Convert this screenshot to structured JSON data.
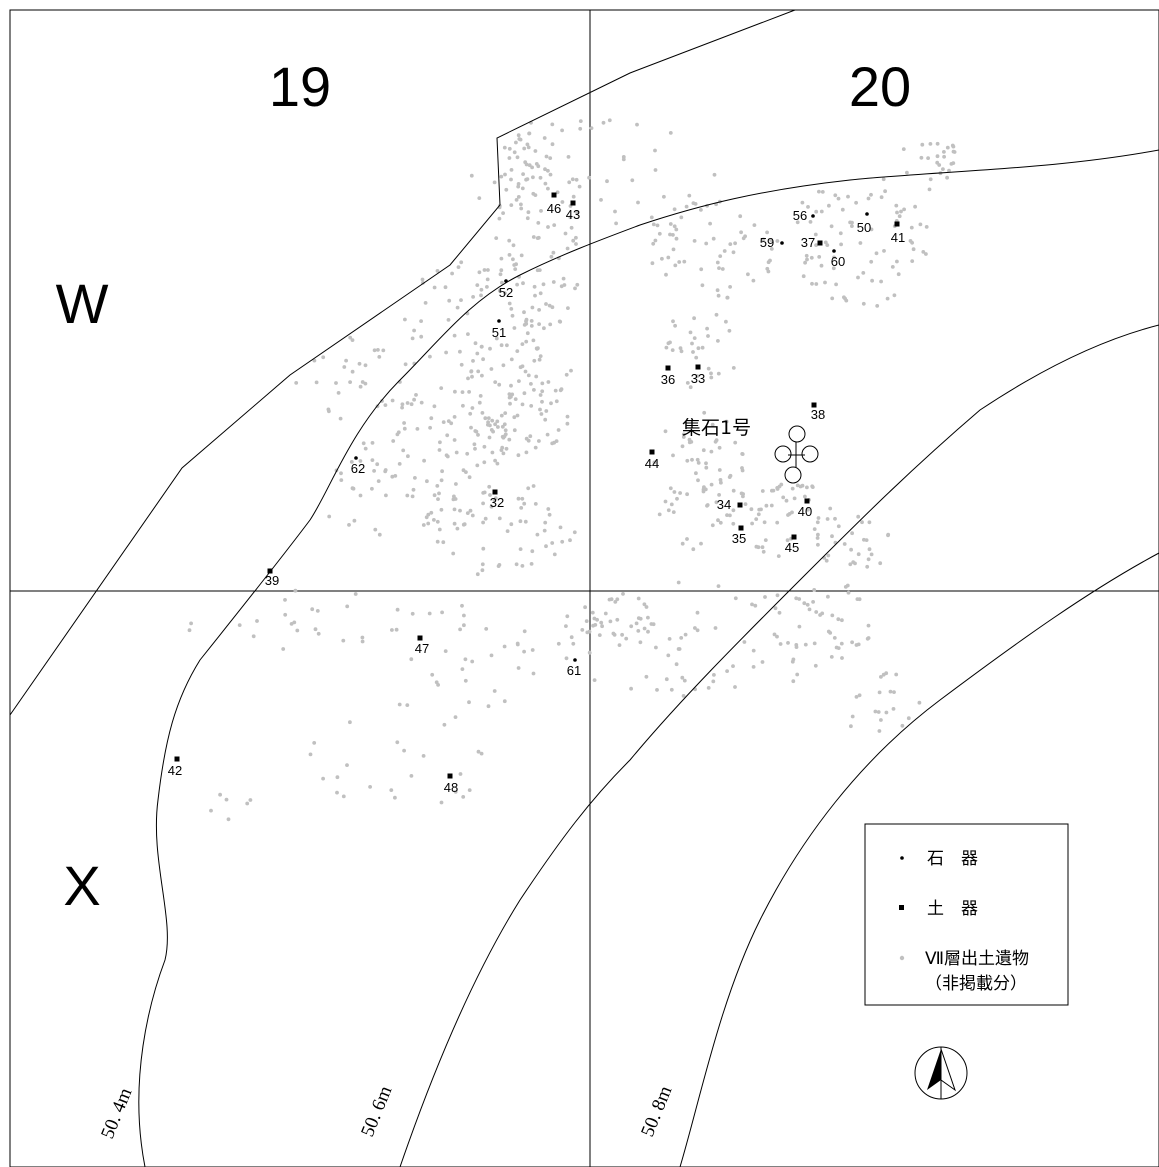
{
  "grid": {
    "columns": [
      "19",
      "20"
    ],
    "rows": [
      "W",
      "X"
    ]
  },
  "contours": [
    "50. 4m",
    "50. 6m",
    "50. 8m"
  ],
  "feature": {
    "label": "集石1号"
  },
  "legend": {
    "stone_tools": "石　器",
    "pottery": "土　器",
    "other_line1": "Ⅶ層出土遺物",
    "other_line2": "（非掲載分）"
  },
  "finds": [
    {
      "id": "46",
      "type": "pottery"
    },
    {
      "id": "43",
      "type": "pottery"
    },
    {
      "id": "52",
      "type": "stone"
    },
    {
      "id": "51",
      "type": "stone"
    },
    {
      "id": "62",
      "type": "stone"
    },
    {
      "id": "39",
      "type": "pottery"
    },
    {
      "id": "32",
      "type": "pottery"
    },
    {
      "id": "36",
      "type": "pottery"
    },
    {
      "id": "33",
      "type": "pottery"
    },
    {
      "id": "38",
      "type": "pottery"
    },
    {
      "id": "44",
      "type": "pottery"
    },
    {
      "id": "34",
      "type": "pottery"
    },
    {
      "id": "40",
      "type": "pottery"
    },
    {
      "id": "35",
      "type": "pottery"
    },
    {
      "id": "45",
      "type": "pottery"
    },
    {
      "id": "56",
      "type": "stone"
    },
    {
      "id": "50",
      "type": "stone"
    },
    {
      "id": "41",
      "type": "pottery"
    },
    {
      "id": "59",
      "type": "stone"
    },
    {
      "id": "37",
      "type": "pottery"
    },
    {
      "id": "60",
      "type": "stone"
    },
    {
      "id": "47",
      "type": "pottery"
    },
    {
      "id": "61",
      "type": "stone"
    },
    {
      "id": "42",
      "type": "pottery"
    },
    {
      "id": "48",
      "type": "pottery"
    }
  ],
  "colors": {
    "ink": "#000000",
    "scatter": "#c0c0c0"
  },
  "icons": {
    "north_arrow": "north-arrow-icon"
  }
}
